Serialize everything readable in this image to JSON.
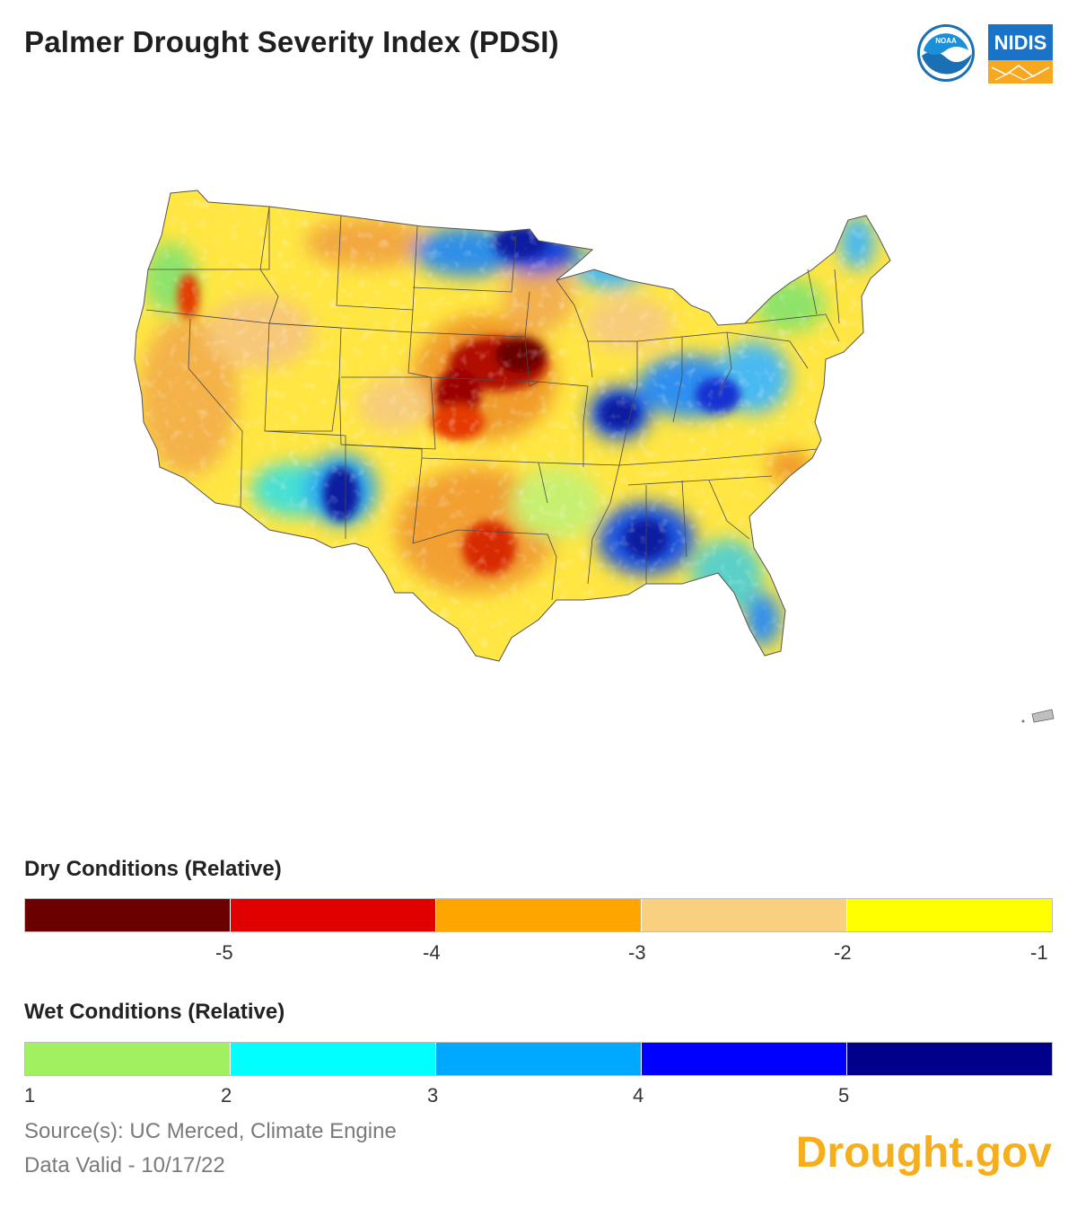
{
  "title": "Palmer Drought Severity Index (PDSI)",
  "logos": {
    "noaa": "NOAA",
    "nidis": "NIDIS"
  },
  "legend": {
    "dry": {
      "title": "Dry Conditions (Relative)",
      "colors": [
        "#6b0000",
        "#e00000",
        "#ffa500",
        "#f9d080",
        "#ffff00"
      ],
      "ticks": [
        "-5",
        "-4",
        "-3",
        "-2",
        "-1"
      ]
    },
    "wet": {
      "title": "Wet Conditions (Relative)",
      "colors": [
        "#a0f060",
        "#00ffff",
        "#00a8ff",
        "#0000ff",
        "#00008b"
      ],
      "ticks": [
        "1",
        "2",
        "3",
        "4",
        "5"
      ]
    }
  },
  "footer": {
    "source": "Source(s): UC Merced, Climate Engine",
    "valid": "Data Valid - 10/17/22",
    "brand": "Drought.gov"
  }
}
